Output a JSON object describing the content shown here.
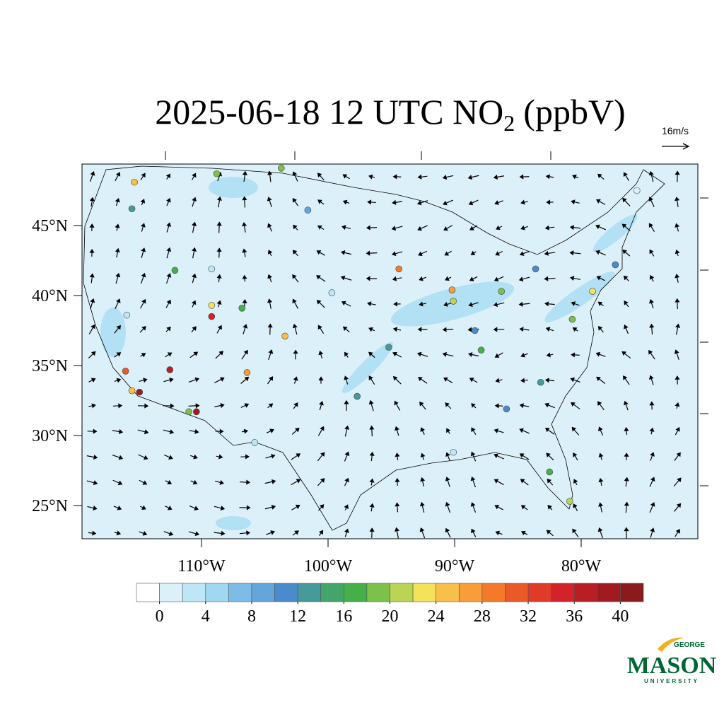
{
  "title": {
    "main": "2025-06-18 12 UTC NO",
    "sub": "2",
    "unit": "(ppbV)"
  },
  "vector_reference": "16m/s",
  "lat_labels": [
    {
      "value": 45,
      "label": "45°N"
    },
    {
      "value": 40,
      "label": "40°N"
    },
    {
      "value": 35,
      "label": "35°N"
    },
    {
      "value": 30,
      "label": "30°N"
    },
    {
      "value": 25,
      "label": "25°N"
    }
  ],
  "lon_labels": [
    {
      "value": -110,
      "label": "110°W"
    },
    {
      "value": -100,
      "label": "100°W"
    },
    {
      "value": -90,
      "label": "90°W"
    },
    {
      "value": -80,
      "label": "80°W"
    }
  ],
  "colorbar": {
    "colors": [
      "#ffffff",
      "#dcf0fa",
      "#bfe6f7",
      "#a0d8f2",
      "#7dbce6",
      "#64a5db",
      "#4a8bcb",
      "#469a9a",
      "#43a56a",
      "#45b04a",
      "#7cc24a",
      "#bcd453",
      "#f4e35a",
      "#f8c04a",
      "#f79d3a",
      "#f47a2a",
      "#ea5a29",
      "#e03a28",
      "#d2232a",
      "#b81e24",
      "#a01b20",
      "#8a1a1c"
    ],
    "ticks": [
      0,
      4,
      8,
      12,
      16,
      20,
      24,
      28,
      32,
      36,
      40
    ]
  },
  "stations": [
    {
      "lon": -114.9,
      "lat": 33.1,
      "value": 38
    },
    {
      "lon": -115.5,
      "lat": 33.2,
      "value": 24
    },
    {
      "lon": -116.0,
      "lat": 34.6,
      "value": 30
    },
    {
      "lon": -112.5,
      "lat": 34.7,
      "value": 36
    },
    {
      "lon": -110.4,
      "lat": 31.7,
      "value": 38
    },
    {
      "lon": -111.0,
      "lat": 31.7,
      "value": 18
    },
    {
      "lon": -109.2,
      "lat": 38.5,
      "value": 34
    },
    {
      "lon": -109.2,
      "lat": 39.3,
      "value": 22
    },
    {
      "lon": -112.1,
      "lat": 41.8,
      "value": 17
    },
    {
      "lon": -115.3,
      "lat": 48.1,
      "value": 24
    },
    {
      "lon": -115.5,
      "lat": 46.2,
      "value": 13
    },
    {
      "lon": -106.8,
      "lat": 39.1,
      "value": 16
    },
    {
      "lon": -103.4,
      "lat": 37.1,
      "value": 24
    },
    {
      "lon": -106.4,
      "lat": 34.5,
      "value": 27
    },
    {
      "lon": -108.8,
      "lat": 48.7,
      "value": 18
    },
    {
      "lon": -103.7,
      "lat": 49.1,
      "value": 18
    },
    {
      "lon": -94.4,
      "lat": 41.9,
      "value": 28
    },
    {
      "lon": -90.1,
      "lat": 39.6,
      "value": 20
    },
    {
      "lon": -90.2,
      "lat": 40.4,
      "value": 26
    },
    {
      "lon": -95.2,
      "lat": 36.3,
      "value": 12
    },
    {
      "lon": -88.4,
      "lat": 37.5,
      "value": 11
    },
    {
      "lon": -87.9,
      "lat": 36.1,
      "value": 17
    },
    {
      "lon": -83.6,
      "lat": 41.9,
      "value": 10
    },
    {
      "lon": -86.3,
      "lat": 40.3,
      "value": 18
    },
    {
      "lon": -79.1,
      "lat": 40.3,
      "value": 22
    },
    {
      "lon": -80.7,
      "lat": 38.3,
      "value": 18
    },
    {
      "lon": -82.5,
      "lat": 27.4,
      "value": 17
    },
    {
      "lon": -80.9,
      "lat": 25.3,
      "value": 20
    },
    {
      "lon": -83.2,
      "lat": 33.8,
      "value": 13
    },
    {
      "lon": -85.9,
      "lat": 31.9,
      "value": 11
    },
    {
      "lon": -77.3,
      "lat": 42.2,
      "value": 10
    },
    {
      "lon": -101.6,
      "lat": 46.1,
      "value": 9
    },
    {
      "lon": -97.7,
      "lat": 32.8,
      "value": 13
    },
    {
      "lon": -99.7,
      "lat": 40.2,
      "value": 3
    },
    {
      "lon": -115.9,
      "lat": 38.6,
      "value": 3
    },
    {
      "lon": -90.1,
      "lat": 28.8,
      "value": 2
    },
    {
      "lon": -75.6,
      "lat": 47.5,
      "value": 1
    },
    {
      "lon": -105.8,
      "lat": 29.5,
      "value": 2
    },
    {
      "lon": -109.2,
      "lat": 41.9,
      "value": 2
    }
  ],
  "logo": {
    "top": "GEORGE",
    "name": "MASON",
    "bottom": "UNIVERSITY"
  }
}
